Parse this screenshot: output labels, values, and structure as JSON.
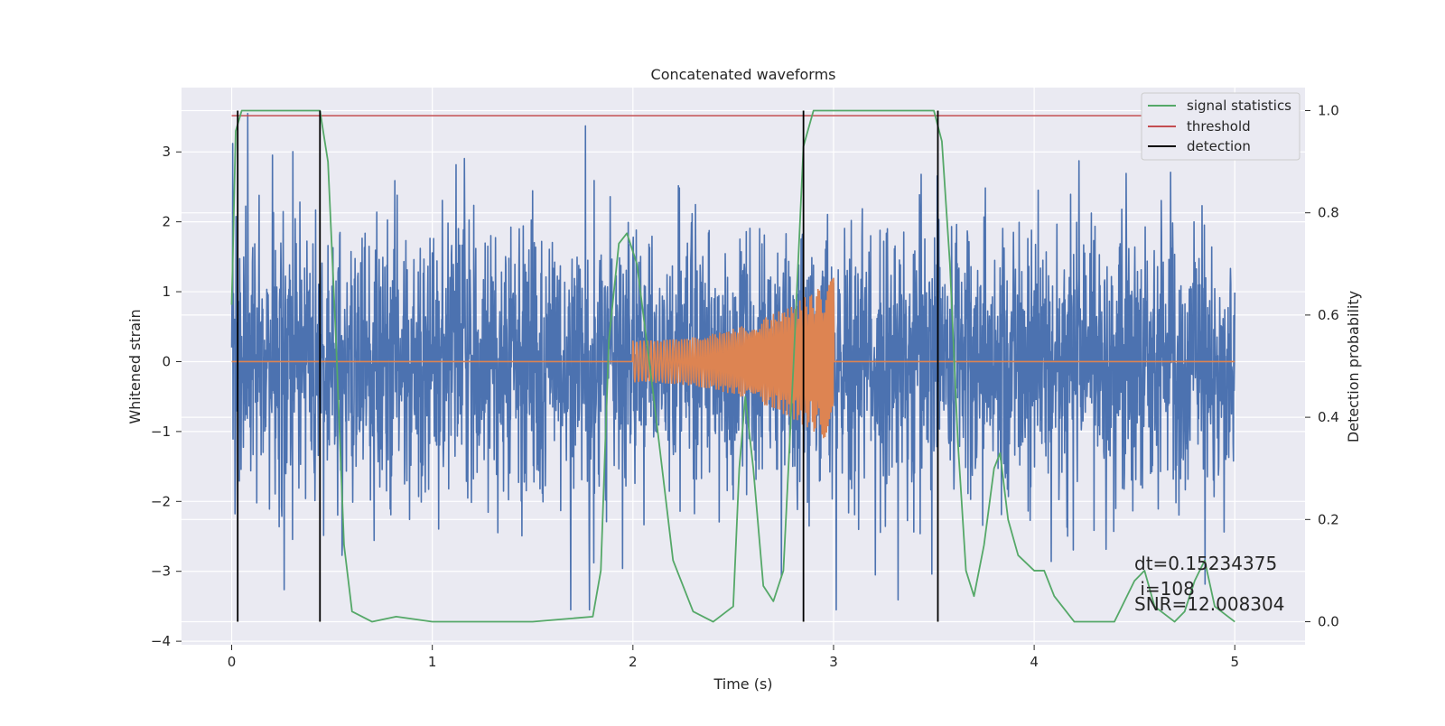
{
  "chart_data": {
    "type": "line",
    "title": "Concatenated waveforms",
    "xlabel": "Time (s)",
    "ylabel": "Whitened strain",
    "y2label": "Detection probability",
    "xlim": [
      -0.25,
      5.35
    ],
    "ylim": [
      -4.05,
      3.92
    ],
    "y2lim": [
      -0.045,
      1.045
    ],
    "x_ticks": [
      "0",
      "1",
      "2",
      "3",
      "4",
      "5"
    ],
    "y_ticks": [
      "−4",
      "−3",
      "−2",
      "−1",
      "0",
      "1",
      "2",
      "3"
    ],
    "y2_ticks": [
      "0.0",
      "0.2",
      "0.4",
      "0.6",
      "0.8",
      "1.0"
    ],
    "grid": true,
    "legend_position": "top-right",
    "series": [
      {
        "name": "",
        "role": "noisy strain",
        "color": "#4c72b0",
        "x_range": [
          0,
          5
        ],
        "amplitude_typical": 1.0,
        "amplitude_peak": 3.55
      },
      {
        "name": "",
        "role": "injected chirp",
        "color": "#dd8452",
        "x_range": [
          2.0,
          3.0
        ],
        "amp_start": 0.3,
        "amp_end": 1.2
      },
      {
        "name": "signal statistics",
        "color": "#55a868",
        "axis": "right",
        "x": [
          0,
          0.02,
          0.05,
          0.1,
          0.3,
          0.44,
          0.48,
          0.52,
          0.56,
          0.6,
          0.7,
          0.82,
          1.0,
          1.5,
          1.8,
          1.84,
          1.88,
          1.93,
          1.97,
          2.02,
          2.1,
          2.2,
          2.3,
          2.4,
          2.5,
          2.53,
          2.56,
          2.6,
          2.65,
          2.7,
          2.75,
          2.8,
          2.85,
          2.9,
          3.0,
          3.5,
          3.54,
          3.58,
          3.62,
          3.66,
          3.7,
          3.75,
          3.8,
          3.83,
          3.87,
          3.92,
          4.0,
          4.05,
          4.1,
          4.2,
          4.4,
          4.5,
          4.55,
          4.6,
          4.7,
          4.75,
          4.8,
          4.85,
          4.9,
          5.0
        ],
        "y": [
          0.62,
          0.96,
          1.0,
          1.0,
          1.0,
          1.0,
          0.9,
          0.55,
          0.15,
          0.02,
          0.0,
          0.01,
          0.0,
          0.0,
          0.01,
          0.1,
          0.55,
          0.74,
          0.76,
          0.7,
          0.45,
          0.12,
          0.02,
          0.0,
          0.03,
          0.3,
          0.44,
          0.3,
          0.07,
          0.04,
          0.1,
          0.5,
          0.93,
          1.0,
          1.0,
          1.0,
          0.94,
          0.7,
          0.35,
          0.1,
          0.05,
          0.15,
          0.3,
          0.33,
          0.2,
          0.13,
          0.1,
          0.1,
          0.05,
          0.0,
          0.0,
          0.08,
          0.1,
          0.03,
          0.0,
          0.02,
          0.08,
          0.12,
          0.03,
          0.0
        ]
      },
      {
        "name": "threshold",
        "color": "#c44e52",
        "axis": "right",
        "x": [
          0,
          5
        ],
        "y": [
          0.99,
          0.99
        ]
      },
      {
        "name": "detection",
        "color": "#000000",
        "axis": "right",
        "x": [
          0.03,
          0.44,
          2.85,
          3.52
        ],
        "y_range": [
          0.0,
          1.0
        ]
      }
    ],
    "annotations": [
      "dt=0.15234375",
      " i=108",
      "SNR=12.008304"
    ]
  },
  "colors": {
    "axes_bg": "#eaeaf2",
    "grid": "#ffffff",
    "strain": "#4c72b0",
    "chirp": "#dd8452",
    "statistic": "#55a868",
    "threshold": "#c44e52",
    "detection": "#000000"
  }
}
